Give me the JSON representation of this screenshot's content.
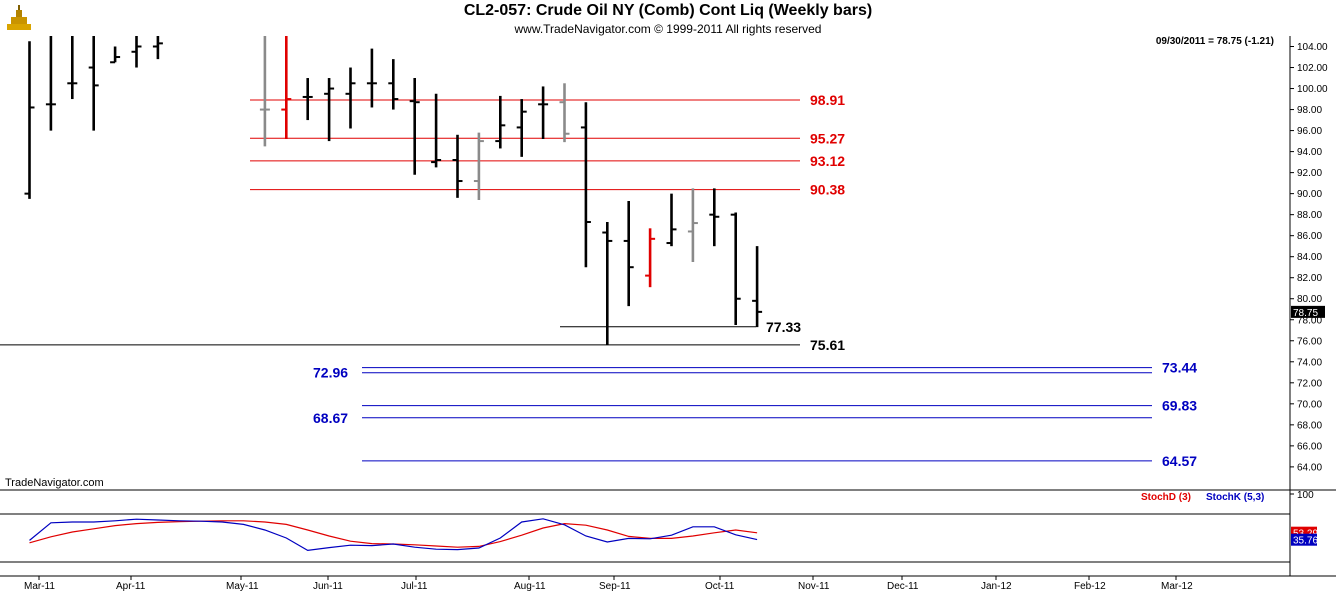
{
  "header": {
    "title": "CL2-057:  Crude Oil NY (Comb) Cont Liq  (Weekly bars)",
    "subtitle": "www.TradeNavigator.com © 1999-2011 All rights reserved",
    "readout": "09/30/2011 = 78.75 (-1.21)",
    "watermark": "TradeNavigator.com"
  },
  "colors": {
    "up_bar": "#000000",
    "gray_bar": "#8a8a8a",
    "red_bar": "#e00000",
    "resistance": "#e00000",
    "support": "#0000c0",
    "base_line": "#000000",
    "stoch_d": "#e00000",
    "stoch_k": "#0000c0",
    "axis_bg": "#ffffff"
  },
  "chart_data": [
    {
      "type": "ohlc",
      "title": "CL2-057:  Crude Oil NY (Comb) Cont Liq  (Weekly bars)",
      "ylim": [
        61.8,
        105
      ],
      "yticks": [
        64,
        66,
        68,
        70,
        72,
        74,
        76,
        78,
        80,
        82,
        84,
        86,
        88,
        90,
        92,
        94,
        96,
        98,
        100,
        102,
        104
      ],
      "month_labels": [
        "Mar-11",
        "Apr-11",
        "May-11",
        "Jun-11",
        "Jul-11",
        "Aug-11",
        "Sep-11",
        "Oct-11",
        "Nov-11",
        "Dec-11",
        "Jan-12",
        "Feb-12",
        "Mar-12"
      ],
      "last_price_label": "78.75",
      "bars": [
        {
          "w": 0,
          "o": 90.0,
          "h": 104.5,
          "l": 89.5,
          "c": 98.2,
          "color": "black"
        },
        {
          "w": 1,
          "o": 98.5,
          "h": 106.0,
          "l": 96.0,
          "c": 98.5,
          "color": "black"
        },
        {
          "w": 2,
          "o": 100.5,
          "h": 106.0,
          "l": 99.0,
          "c": 100.5,
          "color": "black"
        },
        {
          "w": 3,
          "o": 102.0,
          "h": 106.0,
          "l": 96.0,
          "c": 100.3,
          "color": "black"
        },
        {
          "w": 4,
          "o": 102.5,
          "h": 104.0,
          "l": 102.5,
          "c": 103.0,
          "color": "black"
        },
        {
          "w": 5,
          "o": 103.5,
          "h": 106.0,
          "l": 102.0,
          "c": 104.0,
          "color": "black"
        },
        {
          "w": 6,
          "o": 104.0,
          "h": 106.0,
          "l": 102.8,
          "c": 104.3,
          "color": "black"
        },
        {
          "w": 11,
          "o": 98.0,
          "h": 105.0,
          "l": 94.5,
          "c": 98.0,
          "color": "gray"
        },
        {
          "w": 12,
          "o": 98.0,
          "h": 105.0,
          "l": 95.2,
          "c": 99.0,
          "color": "red"
        },
        {
          "w": 13,
          "o": 99.2,
          "h": 101.0,
          "l": 97.0,
          "c": 99.2,
          "color": "black"
        },
        {
          "w": 14,
          "o": 99.5,
          "h": 101.0,
          "l": 95.0,
          "c": 100.0,
          "color": "black"
        },
        {
          "w": 15,
          "o": 99.5,
          "h": 102.0,
          "l": 96.2,
          "c": 100.5,
          "color": "black"
        },
        {
          "w": 16,
          "o": 100.5,
          "h": 103.8,
          "l": 98.2,
          "c": 100.5,
          "color": "black"
        },
        {
          "w": 17,
          "o": 100.5,
          "h": 102.8,
          "l": 98.0,
          "c": 99.0,
          "color": "black"
        },
        {
          "w": 18,
          "o": 98.8,
          "h": 101.0,
          "l": 91.8,
          "c": 98.7,
          "color": "black"
        },
        {
          "w": 19,
          "o": 93.0,
          "h": 99.5,
          "l": 92.5,
          "c": 93.2,
          "color": "black"
        },
        {
          "w": 20,
          "o": 93.2,
          "h": 95.6,
          "l": 89.6,
          "c": 91.2,
          "color": "black"
        },
        {
          "w": 21,
          "o": 91.2,
          "h": 95.8,
          "l": 89.4,
          "c": 95.0,
          "color": "gray"
        },
        {
          "w": 22,
          "o": 95.0,
          "h": 99.3,
          "l": 94.3,
          "c": 96.5,
          "color": "black"
        },
        {
          "w": 23,
          "o": 96.3,
          "h": 99.0,
          "l": 93.5,
          "c": 97.8,
          "color": "black"
        },
        {
          "w": 24,
          "o": 98.5,
          "h": 100.2,
          "l": 95.2,
          "c": 98.5,
          "color": "black"
        },
        {
          "w": 25,
          "o": 98.7,
          "h": 100.5,
          "l": 94.9,
          "c": 95.7,
          "color": "gray"
        },
        {
          "w": 26,
          "o": 96.3,
          "h": 98.7,
          "l": 83.0,
          "c": 87.3,
          "color": "black"
        },
        {
          "w": 27,
          "o": 86.3,
          "h": 87.3,
          "l": 75.6,
          "c": 85.5,
          "color": "black"
        },
        {
          "w": 28,
          "o": 85.5,
          "h": 89.3,
          "l": 79.3,
          "c": 83.0,
          "color": "black"
        },
        {
          "w": 29,
          "o": 82.2,
          "h": 86.7,
          "l": 81.1,
          "c": 85.7,
          "color": "red"
        },
        {
          "w": 30,
          "o": 85.3,
          "h": 90.0,
          "l": 85.0,
          "c": 86.6,
          "color": "black"
        },
        {
          "w": 31,
          "o": 86.4,
          "h": 90.5,
          "l": 83.5,
          "c": 87.2,
          "color": "gray"
        },
        {
          "w": 32,
          "o": 88.0,
          "h": 90.5,
          "l": 85.0,
          "c": 87.8,
          "color": "black"
        },
        {
          "w": 33,
          "o": 88.0,
          "h": 88.2,
          "l": 77.5,
          "c": 80.0,
          "color": "black"
        },
        {
          "w": 34,
          "o": 79.8,
          "h": 85.0,
          "l": 77.3,
          "c": 78.75,
          "color": "black"
        }
      ],
      "levels": [
        {
          "value": 98.91,
          "label": "98.91",
          "color": "red",
          "label_side": "right"
        },
        {
          "value": 95.27,
          "label": "95.27",
          "color": "red",
          "label_side": "right"
        },
        {
          "value": 93.12,
          "label": "93.12",
          "color": "red",
          "label_side": "right"
        },
        {
          "value": 90.38,
          "label": "90.38",
          "color": "red",
          "label_side": "right"
        },
        {
          "value": 77.33,
          "label": "77.33",
          "color": "black",
          "label_side": "right"
        },
        {
          "value": 75.61,
          "label": "75.61",
          "color": "black",
          "label_side": "right"
        },
        {
          "value": 73.44,
          "label": "73.44",
          "color": "blue",
          "label_side": "right"
        },
        {
          "value": 72.96,
          "label": "72.96",
          "color": "blue",
          "label_side": "left"
        },
        {
          "value": 69.83,
          "label": "69.83",
          "color": "blue",
          "label_side": "right"
        },
        {
          "value": 68.67,
          "label": "68.67",
          "color": "blue",
          "label_side": "left"
        },
        {
          "value": 64.57,
          "label": "64.57",
          "color": "blue",
          "label_side": "right"
        }
      ]
    },
    {
      "type": "line",
      "title": "",
      "ylim": [
        0,
        100
      ],
      "yticks": [
        100
      ],
      "series": [
        {
          "name": "StochD (3)",
          "last_label": "53.29",
          "values": [
            28,
            43,
            55,
            63,
            71,
            76,
            79,
            81,
            82,
            83,
            83,
            80,
            74,
            60,
            45,
            32,
            26,
            25,
            23,
            20,
            17,
            19,
            31,
            47,
            65,
            76,
            72,
            60,
            44,
            39,
            39,
            45,
            53,
            60,
            53
          ]
        },
        {
          "name": "StochK (5,3)",
          "last_label": "35.76",
          "values": [
            34,
            78,
            80,
            80,
            83,
            87,
            85,
            83,
            82,
            80,
            74,
            60,
            40,
            9,
            16,
            22,
            21,
            25,
            17,
            12,
            11,
            15,
            40,
            80,
            88,
            73,
            45,
            30,
            39,
            38,
            47,
            68,
            68,
            48,
            36
          ]
        }
      ]
    }
  ]
}
